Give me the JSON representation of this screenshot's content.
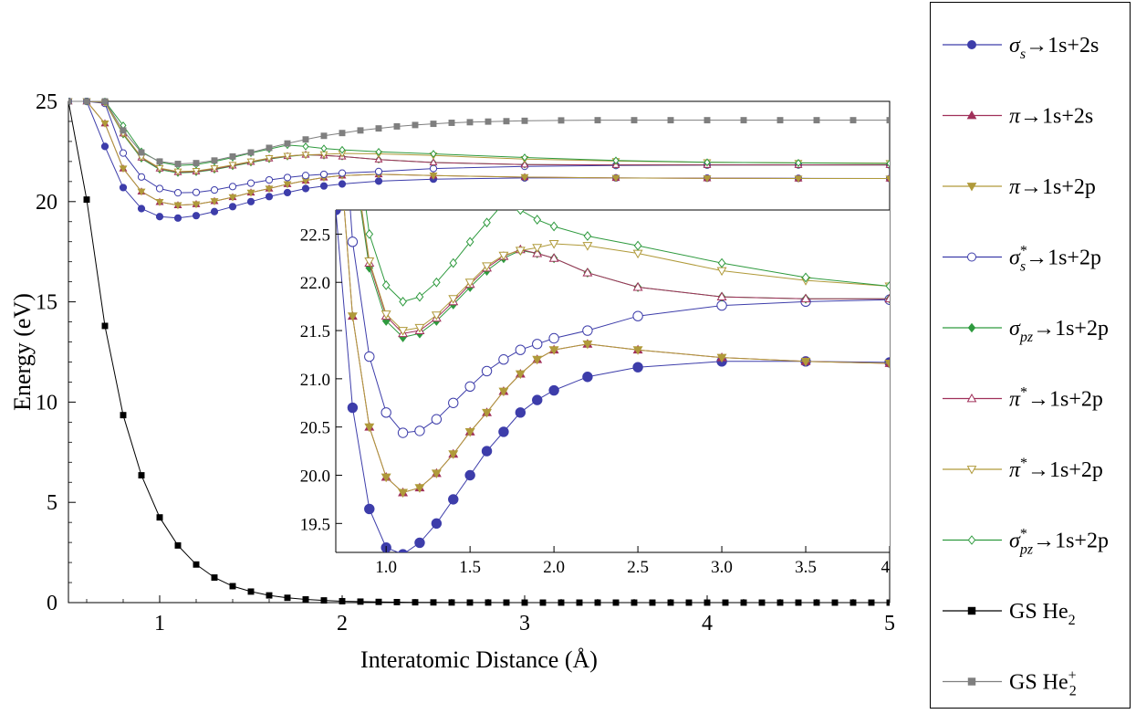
{
  "chart_data": [
    {
      "type": "line",
      "xlabel": "Interatomic Distance (Å)",
      "ylabel": "Energy (eV)",
      "xlim": [
        0.5,
        5.0
      ],
      "ylim": [
        0,
        25
      ],
      "xticks": [
        "1",
        "2",
        "3",
        "4",
        "5"
      ],
      "yticks": [
        "0",
        "5",
        "10",
        "15",
        "20",
        "25"
      ],
      "grid": false,
      "legend_position": "right, outside",
      "series": [
        {
          "name": "σs→1s+2s",
          "color": "#3d3daa",
          "marker": "circle",
          "x": [
            0.5,
            0.6,
            0.7,
            0.8,
            0.9,
            1.0,
            1.1,
            1.2,
            1.3,
            1.4,
            1.5,
            1.6,
            1.7,
            1.8,
            1.9,
            2.0,
            2.2,
            2.5,
            3.0,
            3.5,
            4.0,
            4.5,
            5.0
          ],
          "y": [
            25,
            25,
            22.75,
            20.7,
            19.65,
            19.25,
            19.18,
            19.3,
            19.5,
            19.75,
            20.0,
            20.25,
            20.45,
            20.65,
            20.78,
            20.88,
            21.02,
            21.12,
            21.18,
            21.18,
            21.17,
            21.16,
            21.15
          ]
        },
        {
          "name": "π→1s+2s",
          "color": "#a0305a",
          "marker": "triangle-up",
          "x": [
            0.5,
            0.6,
            0.7,
            0.8,
            0.9,
            1.0,
            1.1,
            1.2,
            1.3,
            1.4,
            1.5,
            1.6,
            1.7,
            1.8,
            1.9,
            2.0,
            2.2,
            2.5,
            3.0,
            3.5,
            4.0,
            4.5,
            5.0
          ],
          "y": [
            25,
            25,
            23.9,
            21.65,
            20.5,
            19.98,
            19.82,
            19.87,
            20.02,
            20.22,
            20.45,
            20.65,
            20.87,
            21.05,
            21.2,
            21.3,
            21.36,
            21.3,
            21.22,
            21.18,
            21.16,
            21.15,
            21.15
          ]
        },
        {
          "name": "π→1s+2p",
          "color": "#b09a3a",
          "marker": "triangle-down",
          "x": [
            0.5,
            0.6,
            0.7,
            0.8,
            0.9,
            1.0,
            1.1,
            1.2,
            1.3,
            1.4,
            1.5,
            1.6,
            1.7,
            1.8,
            1.9,
            2.0,
            2.2,
            2.5,
            3.0,
            3.5,
            4.0,
            4.5,
            5.0
          ],
          "y": [
            25,
            25,
            23.9,
            21.65,
            20.5,
            19.98,
            19.82,
            19.87,
            20.02,
            20.22,
            20.45,
            20.65,
            20.87,
            21.05,
            21.2,
            21.3,
            21.36,
            21.3,
            21.22,
            21.18,
            21.16,
            21.15,
            21.15
          ]
        },
        {
          "name": "σs*→1s+2p",
          "color": "#3d3daa",
          "marker": "circle-open",
          "x": [
            0.5,
            0.6,
            0.7,
            0.8,
            0.9,
            1.0,
            1.1,
            1.2,
            1.3,
            1.4,
            1.5,
            1.6,
            1.7,
            1.8,
            1.9,
            2.0,
            2.2,
            2.5,
            3.0,
            3.5,
            4.0,
            4.5,
            5.0
          ],
          "y": [
            25,
            25,
            24.9,
            22.42,
            21.23,
            20.65,
            20.44,
            20.46,
            20.58,
            20.75,
            20.92,
            21.08,
            21.2,
            21.3,
            21.36,
            21.42,
            21.5,
            21.65,
            21.76,
            21.8,
            21.82,
            21.83,
            21.83
          ]
        },
        {
          "name": "σpz→1s+2p",
          "color": "#2e9a3e",
          "marker": "diamond",
          "x": [
            0.5,
            0.6,
            0.7,
            0.8,
            0.9,
            1.0,
            1.1,
            1.2,
            1.3,
            1.4,
            1.5,
            1.6,
            1.7,
            1.8,
            1.9,
            2.0,
            2.2,
            2.5,
            3.0,
            3.5,
            4.0,
            4.5,
            5.0
          ],
          "y": [
            25,
            25,
            24.95,
            23.35,
            22.15,
            21.6,
            21.43,
            21.47,
            21.6,
            21.77,
            21.95,
            22.12,
            22.25,
            22.33,
            22.3,
            22.25,
            22.1,
            21.95,
            21.85,
            21.83,
            21.83,
            21.83,
            21.83
          ]
        },
        {
          "name": "π*→1s+2p",
          "color": "#a0305a",
          "marker": "triangle-up-open",
          "x": [
            0.5,
            0.6,
            0.7,
            0.8,
            0.9,
            1.0,
            1.1,
            1.2,
            1.3,
            1.4,
            1.5,
            1.6,
            1.7,
            1.8,
            1.9,
            2.0,
            2.2,
            2.5,
            3.0,
            3.5,
            4.0,
            4.5,
            5.0
          ],
          "y": [
            25,
            25,
            24.95,
            23.4,
            22.2,
            21.65,
            21.47,
            21.5,
            21.63,
            21.8,
            21.98,
            22.15,
            22.27,
            22.34,
            22.3,
            22.25,
            22.1,
            21.95,
            21.85,
            21.83,
            21.83,
            21.83,
            21.83
          ]
        },
        {
          "name": "π*→1s+2p",
          "color": "#b09a3a",
          "marker": "triangle-down-open",
          "x": [
            0.5,
            0.6,
            0.7,
            0.8,
            0.9,
            1.0,
            1.1,
            1.2,
            1.3,
            1.4,
            1.5,
            1.6,
            1.7,
            1.8,
            1.9,
            2.0,
            2.2,
            2.5,
            3.0,
            3.5,
            4.0,
            4.5,
            5.0
          ],
          "y": [
            25,
            25,
            24.95,
            23.4,
            22.22,
            21.67,
            21.5,
            21.53,
            21.66,
            21.83,
            22.0,
            22.17,
            22.28,
            22.33,
            22.36,
            22.4,
            22.38,
            22.3,
            22.12,
            22.02,
            21.96,
            21.93,
            21.92
          ]
        },
        {
          "name": "σpz*→1s+2p",
          "color": "#2e9a3e",
          "marker": "diamond-open",
          "x": [
            0.5,
            0.6,
            0.7,
            0.8,
            0.9,
            1.0,
            1.1,
            1.2,
            1.3,
            1.4,
            1.5,
            1.6,
            1.7,
            1.8,
            1.9,
            2.0,
            2.2,
            2.5,
            3.0,
            3.5,
            4.0,
            4.5,
            5.0
          ],
          "y": [
            25,
            25,
            25,
            23.8,
            22.5,
            21.97,
            21.8,
            21.85,
            22.0,
            22.2,
            22.42,
            22.62,
            22.82,
            22.75,
            22.65,
            22.58,
            22.48,
            22.38,
            22.2,
            22.05,
            21.96,
            21.93,
            21.9
          ]
        },
        {
          "name": "GS He2",
          "color": "#000000",
          "marker": "square",
          "x": [
            0.5,
            0.6,
            0.7,
            0.8,
            0.9,
            1.0,
            1.1,
            1.2,
            1.3,
            1.4,
            1.5,
            1.6,
            1.7,
            1.8,
            1.9,
            2.0,
            2.1,
            2.2,
            2.3,
            2.4,
            2.5,
            2.6,
            2.7,
            2.8,
            2.9,
            3.0,
            3.1,
            3.2,
            3.3,
            3.4,
            3.5,
            3.6,
            3.7,
            3.8,
            3.9,
            4.0,
            4.1,
            4.2,
            4.3,
            4.4,
            4.5,
            4.6,
            4.7,
            4.8,
            4.9,
            5.0
          ],
          "y": [
            25,
            20.1,
            13.8,
            9.35,
            6.35,
            4.25,
            2.85,
            1.9,
            1.25,
            0.82,
            0.55,
            0.36,
            0.24,
            0.16,
            0.11,
            0.07,
            0.05,
            0.035,
            0.025,
            0.015,
            0.01,
            0.006,
            0.004,
            0.003,
            0.002,
            0.001,
            0,
            0,
            0,
            0,
            0,
            0,
            0,
            0,
            0,
            0,
            0,
            0,
            0,
            0,
            0,
            0,
            0,
            0,
            0,
            0
          ]
        },
        {
          "name": "GS He2+",
          "color": "#7f7f7f",
          "marker": "square",
          "x": [
            0.5,
            0.6,
            0.7,
            0.8,
            0.9,
            1.0,
            1.1,
            1.2,
            1.3,
            1.4,
            1.5,
            1.6,
            1.7,
            1.8,
            1.9,
            2.0,
            2.1,
            2.2,
            2.3,
            2.4,
            2.5,
            2.6,
            2.7,
            2.8,
            2.9,
            3.0,
            3.2,
            3.4,
            3.6,
            3.8,
            4.0,
            4.2,
            4.4,
            4.6,
            4.8,
            5.0
          ],
          "y": [
            25,
            25,
            25,
            23.55,
            22.45,
            22.0,
            21.88,
            21.92,
            22.05,
            22.25,
            22.45,
            22.68,
            22.9,
            23.1,
            23.28,
            23.42,
            23.55,
            23.65,
            23.75,
            23.82,
            23.88,
            23.93,
            23.96,
            23.99,
            24.01,
            24.03,
            24.05,
            24.06,
            24.06,
            24.06,
            24.06,
            24.06,
            24.06,
            24.06,
            24.06,
            24.06
          ]
        }
      ]
    },
    {
      "type": "line",
      "title": "",
      "inset": true,
      "xlim": [
        0.7,
        4.0
      ],
      "ylim": [
        19.2,
        22.75
      ],
      "xticks": [
        "1.0",
        "1.5",
        "2.0",
        "2.5",
        "3.0",
        "3.5",
        "4"
      ],
      "yticks": [
        "19.5",
        "20.0",
        "20.5",
        "21.0",
        "21.5",
        "22.0",
        "22.5"
      ],
      "grid": false,
      "series_ref": "same as main chart, zoomed"
    }
  ],
  "legend": {
    "items": [
      {
        "base": "σ",
        "sub": "s",
        "sup": "",
        "tail": "→1s+2s",
        "color": "#3d3daa",
        "marker": "circle"
      },
      {
        "base": "π",
        "sub": "",
        "sup": "",
        "tail": "→1s+2s",
        "color": "#a0305a",
        "marker": "triangle-up"
      },
      {
        "base": "π",
        "sub": "",
        "sup": "",
        "tail": "→1s+2p",
        "color": "#b09a3a",
        "marker": "triangle-down"
      },
      {
        "base": "σ",
        "sub": "s",
        "sup": "*",
        "tail": "→1s+2p",
        "color": "#3d3daa",
        "marker": "circle-open"
      },
      {
        "base": "σ",
        "sub": "pz",
        "sup": "",
        "tail": "→1s+2p",
        "color": "#2e9a3e",
        "marker": "diamond"
      },
      {
        "base": "π",
        "sub": "",
        "sup": "*",
        "tail": "→1s+2p",
        "color": "#a0305a",
        "marker": "triangle-up-open"
      },
      {
        "base": "π",
        "sub": "",
        "sup": "*",
        "tail": "→1s+2p",
        "color": "#b09a3a",
        "marker": "triangle-down-open"
      },
      {
        "base": "σ",
        "sub": "pz",
        "sup": "*",
        "tail": "→1s+2p",
        "color": "#2e9a3e",
        "marker": "diamond-open"
      },
      {
        "base": "GS He",
        "sub": "2",
        "sup": "",
        "tail": "",
        "color": "#000000",
        "marker": "square"
      },
      {
        "base": "GS He",
        "sub": "2",
        "sup": "+",
        "tail": "",
        "color": "#7f7f7f",
        "marker": "square"
      }
    ]
  }
}
